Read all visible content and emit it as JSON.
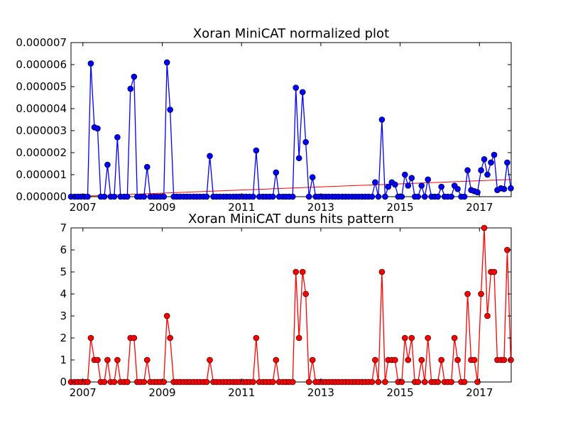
{
  "chart_data": [
    {
      "type": "line",
      "title": "Xoran MiniCAT normalized plot",
      "xlabel": "",
      "ylabel": "",
      "x_range": [
        2006.7,
        2017.8
      ],
      "ylim": [
        0,
        7e-06
      ],
      "x_ticks": [
        2007,
        2009,
        2011,
        2013,
        2015,
        2017
      ],
      "x_tick_labels": [
        "2007",
        "2009",
        "2011",
        "2013",
        "2015",
        "2017"
      ],
      "y_ticks": [
        0,
        1e-06,
        2e-06,
        3e-06,
        4e-06,
        5e-06,
        6e-06,
        7e-06
      ],
      "y_tick_labels": [
        "0.000000",
        "0.000001",
        "0.000002",
        "0.000003",
        "0.000004",
        "0.000005",
        "0.000006",
        "0.000007"
      ],
      "grid": false,
      "line_color": "#0000ff",
      "marker_color": "#0000ff",
      "trend_color": "#ff0000",
      "trend": {
        "x": [
          2006.7,
          2017.8
        ],
        "y": [
          0.0,
          7.8e-07
        ]
      },
      "series": [
        {
          "x": [
            2006.7,
            2006.79,
            2006.87,
            2006.95,
            2007.04,
            2007.12,
            2007.2,
            2007.29,
            2007.37,
            2007.45,
            2007.54,
            2007.62,
            2007.7,
            2007.79,
            2007.87,
            2007.95,
            2008.04,
            2008.12,
            2008.2,
            2008.29,
            2008.37,
            2008.45,
            2008.54,
            2008.62,
            2008.7,
            2008.79,
            2008.87,
            2008.95,
            2009.04,
            2009.12,
            2009.2,
            2009.29,
            2009.37,
            2009.45,
            2009.54,
            2009.62,
            2009.7,
            2009.79,
            2009.87,
            2009.95,
            2010.04,
            2010.12,
            2010.2,
            2010.29,
            2010.37,
            2010.45,
            2010.54,
            2010.62,
            2010.7,
            2010.79,
            2010.87,
            2010.95,
            2011.04,
            2011.12,
            2011.2,
            2011.29,
            2011.37,
            2011.45,
            2011.54,
            2011.62,
            2011.7,
            2011.79,
            2011.87,
            2011.95,
            2012.04,
            2012.12,
            2012.2,
            2012.29,
            2012.37,
            2012.45,
            2012.54,
            2012.62,
            2012.7,
            2012.79,
            2012.87,
            2012.95,
            2013.04,
            2013.12,
            2013.2,
            2013.29,
            2013.37,
            2013.45,
            2013.54,
            2013.62,
            2013.7,
            2013.79,
            2013.87,
            2013.95,
            2014.04,
            2014.12,
            2014.2,
            2014.29,
            2014.37,
            2014.45,
            2014.54,
            2014.62,
            2014.7,
            2014.79,
            2014.87,
            2014.95,
            2015.04,
            2015.12,
            2015.2,
            2015.29,
            2015.37,
            2015.45,
            2015.54,
            2015.62,
            2015.7,
            2015.79,
            2015.87,
            2015.95,
            2016.04,
            2016.12,
            2016.2,
            2016.29,
            2016.37,
            2016.45,
            2016.54,
            2016.62,
            2016.7,
            2016.79,
            2016.87,
            2016.95,
            2017.04,
            2017.12,
            2017.2,
            2017.29,
            2017.37,
            2017.45,
            2017.54,
            2017.62,
            2017.7,
            2017.79
          ],
          "y": [
            0,
            0,
            0,
            0,
            0,
            0,
            6.05e-06,
            3.15e-06,
            3.1e-06,
            0,
            0,
            1.45e-06,
            0,
            0,
            2.7e-06,
            0,
            0,
            0,
            4.9e-06,
            5.45e-06,
            0,
            0,
            0,
            1.35e-06,
            0,
            0,
            0,
            0,
            0,
            6.1e-06,
            3.95e-06,
            0,
            0,
            0,
            0,
            0,
            0,
            0,
            0,
            0,
            0,
            0,
            1.85e-06,
            0,
            0,
            0,
            0,
            0,
            0,
            0,
            0,
            0,
            0,
            0,
            0,
            0,
            2.1e-06,
            0,
            0,
            0,
            0,
            0,
            1.1e-06,
            0,
            0,
            0,
            0,
            0,
            4.95e-06,
            1.75e-06,
            4.75e-06,
            2.48e-06,
            0,
            8.8e-07,
            0,
            0,
            0,
            0,
            0,
            0,
            0,
            0,
            0,
            0,
            0,
            0,
            0,
            0,
            0,
            0,
            0,
            0,
            6.5e-07,
            0,
            3.5e-06,
            0,
            4.5e-07,
            6.5e-07,
            5.5e-07,
            0,
            0,
            1e-06,
            5e-07,
            8.5e-07,
            0,
            0,
            5e-07,
            0,
            7.8e-07,
            0,
            0,
            0,
            4.5e-07,
            0,
            0,
            0,
            5e-07,
            3.5e-07,
            0,
            0,
            1.2e-06,
            3e-07,
            2.5e-07,
            2e-07,
            1.2e-06,
            1.7e-06,
            1e-06,
            1.55e-06,
            1.9e-06,
            3e-07,
            3.8e-07,
            3.5e-07,
            1.55e-06,
            3.8e-07
          ]
        }
      ]
    },
    {
      "type": "line",
      "title": "Xoran MiniCAT duns hits pattern",
      "xlabel": "",
      "ylabel": "",
      "x_range": [
        2006.7,
        2017.8
      ],
      "ylim": [
        0,
        7
      ],
      "x_ticks": [
        2007,
        2009,
        2011,
        2013,
        2015,
        2017
      ],
      "x_tick_labels": [
        "2007",
        "2009",
        "2011",
        "2013",
        "2015",
        "2017"
      ],
      "y_ticks": [
        0,
        1,
        2,
        3,
        4,
        5,
        6,
        7
      ],
      "y_tick_labels": [
        "0",
        "1",
        "2",
        "3",
        "4",
        "5",
        "6",
        "7"
      ],
      "grid": false,
      "line_color": "#ff0000",
      "marker_color": "#ff0000",
      "series": [
        {
          "x": [
            2006.7,
            2006.79,
            2006.87,
            2006.95,
            2007.04,
            2007.12,
            2007.2,
            2007.29,
            2007.37,
            2007.45,
            2007.54,
            2007.62,
            2007.7,
            2007.79,
            2007.87,
            2007.95,
            2008.04,
            2008.12,
            2008.2,
            2008.29,
            2008.37,
            2008.45,
            2008.54,
            2008.62,
            2008.7,
            2008.79,
            2008.87,
            2008.95,
            2009.04,
            2009.12,
            2009.2,
            2009.29,
            2009.37,
            2009.45,
            2009.54,
            2009.62,
            2009.7,
            2009.79,
            2009.87,
            2009.95,
            2010.04,
            2010.12,
            2010.2,
            2010.29,
            2010.37,
            2010.45,
            2010.54,
            2010.62,
            2010.7,
            2010.79,
            2010.87,
            2010.95,
            2011.04,
            2011.12,
            2011.2,
            2011.29,
            2011.37,
            2011.45,
            2011.54,
            2011.62,
            2011.7,
            2011.79,
            2011.87,
            2011.95,
            2012.04,
            2012.12,
            2012.2,
            2012.29,
            2012.37,
            2012.45,
            2012.54,
            2012.62,
            2012.7,
            2012.79,
            2012.87,
            2012.95,
            2013.04,
            2013.12,
            2013.2,
            2013.29,
            2013.37,
            2013.45,
            2013.54,
            2013.62,
            2013.7,
            2013.79,
            2013.87,
            2013.95,
            2014.04,
            2014.12,
            2014.2,
            2014.29,
            2014.37,
            2014.45,
            2014.54,
            2014.62,
            2014.7,
            2014.79,
            2014.87,
            2014.95,
            2015.04,
            2015.12,
            2015.2,
            2015.29,
            2015.37,
            2015.45,
            2015.54,
            2015.62,
            2015.7,
            2015.79,
            2015.87,
            2015.95,
            2016.04,
            2016.12,
            2016.2,
            2016.29,
            2016.37,
            2016.45,
            2016.54,
            2016.62,
            2016.7,
            2016.79,
            2016.87,
            2016.95,
            2017.04,
            2017.12,
            2017.2,
            2017.29,
            2017.37,
            2017.45,
            2017.54,
            2017.62,
            2017.7,
            2017.79
          ],
          "y": [
            0,
            0,
            0,
            0,
            0,
            0,
            2,
            1,
            1,
            0,
            0,
            1,
            0,
            0,
            1,
            0,
            0,
            0,
            2,
            2,
            0,
            0,
            0,
            1,
            0,
            0,
            0,
            0,
            0,
            3,
            2,
            0,
            0,
            0,
            0,
            0,
            0,
            0,
            0,
            0,
            0,
            0,
            1,
            0,
            0,
            0,
            0,
            0,
            0,
            0,
            0,
            0,
            0,
            0,
            0,
            0,
            2,
            0,
            0,
            0,
            0,
            0,
            1,
            0,
            0,
            0,
            0,
            0,
            5,
            2,
            5,
            4,
            0,
            1,
            0,
            0,
            0,
            0,
            0,
            0,
            0,
            0,
            0,
            0,
            0,
            0,
            0,
            0,
            0,
            0,
            0,
            0,
            1,
            0,
            5,
            0,
            1,
            1,
            1,
            0,
            0,
            2,
            1,
            2,
            0,
            0,
            1,
            0,
            2,
            0,
            0,
            0,
            1,
            0,
            0,
            0,
            2,
            1,
            0,
            0,
            4,
            1,
            1,
            0,
            4,
            7,
            3,
            5,
            5,
            1,
            1,
            1,
            6,
            1
          ]
        }
      ]
    }
  ]
}
